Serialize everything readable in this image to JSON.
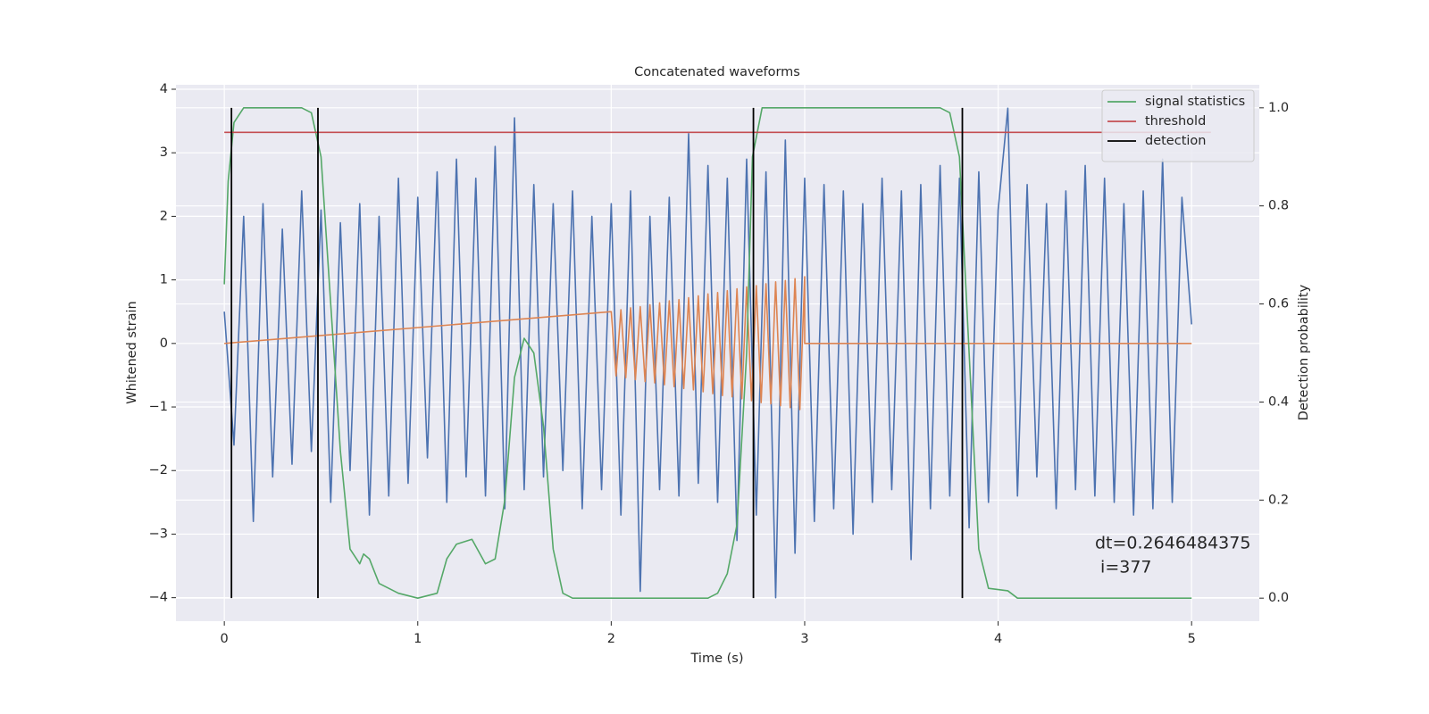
{
  "chart_data": {
    "type": "line",
    "title": "Concatenated waveforms",
    "xlabel": "Time (s)",
    "ylabel": "Whitened strain",
    "y2label": "Detection probability",
    "xlim": [
      -0.25,
      5.35
    ],
    "ylim": [
      -4.37,
      4.07
    ],
    "y2lim": [
      -0.047,
      1.047
    ],
    "xticks": [
      0,
      1,
      2,
      3,
      4,
      5
    ],
    "yticks": [
      {
        "value": -4,
        "label": "−4"
      },
      {
        "value": -3,
        "label": "−3"
      },
      {
        "value": -2,
        "label": "−2"
      },
      {
        "value": -1,
        "label": "−1"
      },
      0,
      1,
      2,
      3,
      4
    ],
    "y2ticks": [
      {
        "value": 0,
        "label": "0.0"
      },
      {
        "value": 0.2,
        "label": "0.2"
      },
      {
        "value": 0.4,
        "label": "0.4"
      },
      {
        "value": 0.6,
        "label": "0.6"
      },
      {
        "value": 0.8,
        "label": "0.8"
      },
      {
        "value": 1,
        "label": "1.0"
      }
    ],
    "grid": true,
    "legend": "upper right",
    "series": [
      {
        "color": "#4c72b0",
        "x": [
          0,
          0.05,
          0.1,
          0.15,
          0.2,
          0.25,
          0.3,
          0.35,
          0.4,
          0.45,
          0.5,
          0.55,
          0.6,
          0.65,
          0.7,
          0.75,
          0.8,
          0.85,
          0.9,
          0.95,
          1,
          1.05,
          1.1,
          1.15,
          1.2,
          1.25,
          1.3,
          1.35,
          1.4,
          1.45,
          1.5,
          1.55,
          1.6,
          1.65,
          1.7,
          1.75,
          1.8,
          1.85,
          1.9,
          1.95,
          2,
          2.05,
          2.1,
          2.15,
          2.2,
          2.25,
          2.3,
          2.35,
          2.4,
          2.45,
          2.5,
          2.55,
          2.6,
          2.65,
          2.7,
          2.75,
          2.8,
          2.85,
          2.9,
          2.95,
          3,
          3.05,
          3.1,
          3.15,
          3.2,
          3.25,
          3.3,
          3.35,
          3.4,
          3.45,
          3.5,
          3.55,
          3.6,
          3.65,
          3.7,
          3.75,
          3.8,
          3.85,
          3.9,
          3.95,
          4,
          4.05,
          4.1,
          4.15,
          4.2,
          4.25,
          4.3,
          4.35,
          4.4,
          4.45,
          4.5,
          4.55,
          4.6,
          4.65,
          4.7,
          4.75,
          4.8,
          4.85,
          4.9,
          4.95,
          5
        ],
        "values": [
          0.5,
          -1.6,
          2.0,
          -2.8,
          2.2,
          -2.1,
          1.8,
          -1.9,
          2.4,
          -1.7,
          2.1,
          -2.5,
          1.9,
          -2.0,
          2.2,
          -2.7,
          2.0,
          -2.4,
          2.6,
          -2.2,
          2.3,
          -1.8,
          2.7,
          -2.5,
          2.9,
          -2.1,
          2.6,
          -2.4,
          3.1,
          -2.6,
          3.55,
          -2.3,
          2.5,
          -2.1,
          2.2,
          -2.0,
          2.4,
          -2.6,
          2.0,
          -2.3,
          2.2,
          -2.7,
          2.4,
          -3.9,
          2.0,
          -2.3,
          2.3,
          -2.4,
          3.3,
          -2.2,
          2.8,
          -2.5,
          2.6,
          -3.1,
          2.9,
          -2.7,
          2.7,
          -4.0,
          3.2,
          -3.3,
          2.6,
          -2.8,
          2.5,
          -2.6,
          2.4,
          -3.0,
          2.2,
          -2.5,
          2.6,
          -2.3,
          2.4,
          -3.4,
          2.5,
          -2.6,
          2.8,
          -2.4,
          2.6,
          -2.9,
          2.7,
          -2.5,
          2.1,
          3.7,
          -2.4,
          2.5,
          -2.1,
          2.2,
          -2.6,
          2.4,
          -2.3,
          2.8,
          -2.4,
          2.6,
          -2.5,
          2.2,
          -2.7,
          2.4,
          -2.6,
          2.9,
          -2.5,
          2.3,
          0.3
        ]
      },
      {
        "color": "#dd8452",
        "x": [
          0,
          2,
          2.025,
          2.05,
          2.075,
          2.1,
          2.125,
          2.15,
          2.175,
          2.2,
          2.225,
          2.25,
          2.275,
          2.3,
          2.325,
          2.35,
          2.375,
          2.4,
          2.425,
          2.45,
          2.475,
          2.5,
          2.525,
          2.55,
          2.575,
          2.6,
          2.625,
          2.65,
          2.675,
          2.7,
          2.725,
          2.75,
          2.775,
          2.8,
          2.825,
          2.85,
          2.875,
          2.9,
          2.925,
          2.95,
          2.975,
          3,
          3,
          5
        ],
        "values": [
          0,
          0.5,
          -0.51,
          0.53,
          -0.54,
          0.56,
          -0.57,
          0.58,
          -0.6,
          0.61,
          -0.62,
          0.64,
          -0.65,
          0.67,
          -0.68,
          0.69,
          -0.71,
          0.72,
          -0.73,
          0.75,
          -0.76,
          0.78,
          -0.79,
          0.8,
          -0.82,
          0.83,
          -0.84,
          0.86,
          -0.87,
          0.89,
          -0.9,
          0.91,
          -0.93,
          0.94,
          -0.95,
          0.97,
          -0.98,
          0.99,
          -1.01,
          1.02,
          -1.04,
          1.05,
          0,
          0
        ]
      },
      {
        "name": "signal statistics",
        "color": "#55a868",
        "axis": "y2",
        "x": [
          0,
          0.02,
          0.05,
          0.1,
          0.4,
          0.45,
          0.5,
          0.55,
          0.6,
          0.65,
          0.7,
          0.72,
          0.75,
          0.8,
          0.9,
          1.0,
          1.1,
          1.15,
          1.2,
          1.28,
          1.35,
          1.4,
          1.45,
          1.5,
          1.55,
          1.6,
          1.65,
          1.7,
          1.75,
          1.8,
          2.5,
          2.55,
          2.6,
          2.65,
          2.7,
          2.73,
          2.78,
          3.7,
          3.75,
          3.8,
          3.85,
          3.9,
          3.95,
          4.05,
          4.1,
          5.0
        ],
        "values": [
          0.64,
          0.85,
          0.97,
          1.0,
          1.0,
          0.99,
          0.9,
          0.6,
          0.3,
          0.1,
          0.07,
          0.09,
          0.08,
          0.03,
          0.01,
          0.0,
          0.01,
          0.08,
          0.11,
          0.12,
          0.07,
          0.08,
          0.2,
          0.45,
          0.53,
          0.5,
          0.35,
          0.1,
          0.01,
          0.0,
          0.0,
          0.01,
          0.05,
          0.15,
          0.5,
          0.9,
          1.0,
          1.0,
          0.99,
          0.9,
          0.5,
          0.1,
          0.02,
          0.015,
          0.0,
          0.0
        ]
      },
      {
        "name": "threshold",
        "color": "#c44e52",
        "axis": "y2",
        "x": [
          0,
          5.1
        ],
        "values": [
          0.95,
          0.95
        ]
      }
    ],
    "detection": {
      "name": "detection",
      "color": "#000000",
      "axis": "y2",
      "x": [
        0.037,
        0.484,
        2.735,
        3.815
      ],
      "ymin": 0,
      "ymax": 1
    },
    "annotation": [
      "dt=0.2646484375",
      " i=377"
    ]
  }
}
